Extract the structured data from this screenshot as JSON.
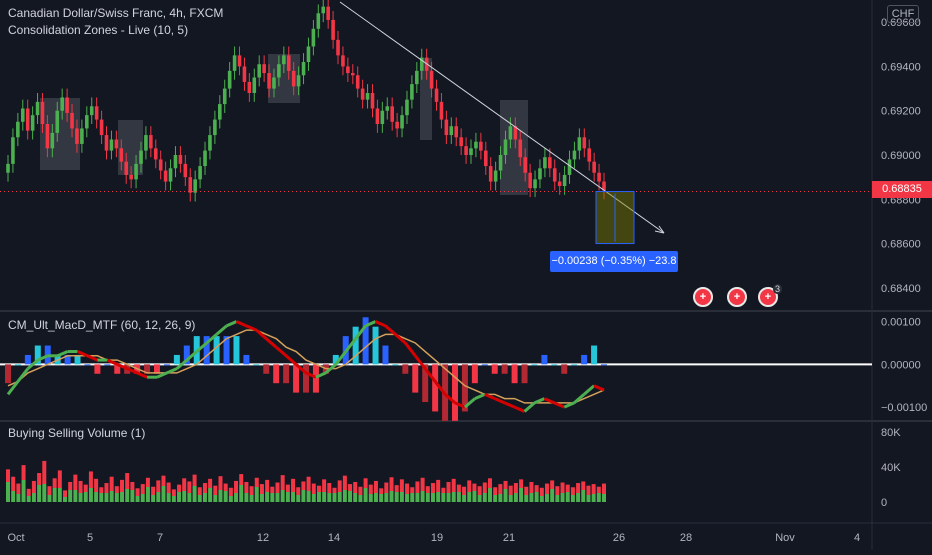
{
  "header": {
    "symbol_title": "Canadian Dollar/Swiss Franc, 4h, FXCM",
    "indicator_1": "Consolidation Zones - Live (10, 5)",
    "indicator_2": "CM_Ult_MacD_MTF (60, 12, 26, 9)",
    "indicator_3": "Buying Selling Volume (1)",
    "currency": "CHF"
  },
  "last_price": "0.68835",
  "measurement_label": "−0.00238 (−0.35%) −23.8",
  "event_badge_count": "3",
  "colors": {
    "background": "#131722",
    "up": "#4caf50",
    "down": "#f23645",
    "accent": "#2962ff",
    "macd_hist_up": "#26c6da",
    "macd_signal": "#d4a15a"
  },
  "chart_data": [
    {
      "type": "candlestick",
      "title": "Canadian Dollar/Swiss Franc, 4h, FXCM",
      "ylim": [
        0.683,
        0.697
      ],
      "y_ticks": [
        "0.69600",
        "0.69400",
        "0.69200",
        "0.69000",
        "0.68800",
        "0.68600",
        "0.68400"
      ],
      "x_ticks": [
        "Oct",
        "5",
        "7",
        "12",
        "14",
        "19",
        "21",
        "26",
        "28",
        "Nov",
        "4"
      ],
      "close": [
        0.6896,
        0.6908,
        0.6915,
        0.6921,
        0.6911,
        0.6918,
        0.6924,
        0.6914,
        0.6903,
        0.691,
        0.692,
        0.6926,
        0.6919,
        0.6912,
        0.6905,
        0.6912,
        0.6918,
        0.6922,
        0.6916,
        0.6909,
        0.6902,
        0.6907,
        0.6903,
        0.6897,
        0.6891,
        0.6889,
        0.6896,
        0.6902,
        0.6909,
        0.6903,
        0.6898,
        0.6893,
        0.6888,
        0.6894,
        0.69,
        0.6896,
        0.689,
        0.6883,
        0.6889,
        0.6895,
        0.6902,
        0.6909,
        0.6916,
        0.6923,
        0.693,
        0.6938,
        0.6945,
        0.694,
        0.6933,
        0.6928,
        0.6935,
        0.6941,
        0.6937,
        0.693,
        0.6935,
        0.6941,
        0.6945,
        0.6938,
        0.6931,
        0.6936,
        0.6942,
        0.6949,
        0.6957,
        0.6964,
        0.6967,
        0.6961,
        0.6952,
        0.6945,
        0.694,
        0.6937,
        0.6936,
        0.693,
        0.6925,
        0.6928,
        0.6921,
        0.6914,
        0.692,
        0.6922,
        0.6915,
        0.6912,
        0.6918,
        0.6925,
        0.6932,
        0.6938,
        0.6944,
        0.6938,
        0.693,
        0.6924,
        0.6916,
        0.6909,
        0.6913,
        0.6908,
        0.6904,
        0.69,
        0.6903,
        0.6906,
        0.6902,
        0.6895,
        0.6888,
        0.6893,
        0.69,
        0.6907,
        0.6913,
        0.6907,
        0.6899,
        0.6892,
        0.6885,
        0.6889,
        0.6894,
        0.6899,
        0.6894,
        0.6888,
        0.6886,
        0.6891,
        0.6898,
        0.6902,
        0.6908,
        0.6903,
        0.6897,
        0.6892,
        0.6888,
        0.6884
      ],
      "open_up_down_alt": "derived",
      "last_price": 0.68835,
      "measure": {
        "text": "−0.00238 (−0.35%) −23.8"
      }
    },
    {
      "type": "line",
      "title": "CM_Ult_MacD_MTF (60, 12, 26, 9)",
      "ylim": [
        -0.0013,
        0.0012
      ],
      "y_ticks": [
        "0.00100",
        "0.00000",
        "−0.00100"
      ],
      "macd": [
        -0.0007,
        -0.0004,
        -0.0001,
        0.0001,
        0.0002,
        0.0002,
        0.0003,
        0.0003,
        0.0002,
        0.0001,
        0.0001,
        0.0,
        -0.0001,
        -0.0002,
        -0.0003,
        -0.0003,
        -0.0002,
        -0.0001,
        0.0001,
        0.0003,
        0.0005,
        0.0007,
        0.0009,
        0.001,
        0.0009,
        0.0008,
        0.0006,
        0.0004,
        0.0002,
        0.0,
        -0.0002,
        -0.0003,
        -0.0002,
        0.0,
        0.0003,
        0.0006,
        0.0009,
        0.001,
        0.0009,
        0.0007,
        0.0005,
        0.0002,
        -0.0001,
        -0.0004,
        -0.0007,
        -0.0009,
        -0.001,
        -0.0008,
        -0.0007,
        -0.0008,
        -0.0009,
        -0.001,
        -0.0011,
        -0.0009,
        -0.0008,
        -0.0009,
        -0.001,
        -0.0009,
        -0.0007,
        -0.0005,
        -0.0006
      ],
      "signal": [
        -0.0005,
        -0.0004,
        -0.0002,
        -0.0001,
        0.0,
        0.0001,
        0.0002,
        0.0002,
        0.0002,
        0.0002,
        0.0001,
        0.0001,
        0.0,
        -0.0001,
        -0.0002,
        -0.0002,
        -0.0002,
        -0.0002,
        -0.0001,
        0.0,
        0.0002,
        0.0004,
        0.0006,
        0.0007,
        0.0008,
        0.0008,
        0.0007,
        0.0006,
        0.0004,
        0.0003,
        0.0001,
        0.0,
        -0.0001,
        -0.0001,
        0.0,
        0.0002,
        0.0004,
        0.0006,
        0.0007,
        0.0007,
        0.0006,
        0.0005,
        0.0003,
        0.0001,
        -0.0001,
        -0.0003,
        -0.0005,
        -0.0006,
        -0.0007,
        -0.0007,
        -0.0008,
        -0.0008,
        -0.0009,
        -0.0009,
        -0.0009,
        -0.0009,
        -0.0009,
        -0.0009,
        -0.0008,
        -0.0007,
        -0.0006
      ]
    },
    {
      "type": "bar",
      "title": "Buying Selling Volume (1)",
      "ylim": [
        0,
        90000
      ],
      "y_ticks": [
        "80K",
        "40K",
        "0"
      ],
      "volume": [
        62,
        48,
        35,
        70,
        25,
        40,
        55,
        78,
        30,
        45,
        60,
        22,
        38,
        52,
        40,
        33,
        58,
        44,
        28,
        36,
        48,
        30,
        42,
        55,
        38,
        26,
        34,
        46,
        29,
        41,
        50,
        37,
        24,
        33,
        45,
        39,
        52,
        28,
        36,
        44,
        31,
        49,
        35,
        27,
        40,
        53,
        38,
        30,
        46,
        34,
        42,
        29,
        37,
        51,
        33,
        44,
        28,
        39,
        48,
        35,
        31,
        43,
        36,
        27,
        41,
        50,
        34,
        38,
        29,
        45,
        33,
        40,
        26,
        37,
        47,
        32,
        43,
        35,
        28,
        39,
        46,
        30,
        36,
        42,
        27,
        38,
        44,
        33,
        29,
        41,
        35,
        30,
        37,
        45,
        28,
        34,
        40,
        31,
        36,
        43,
        29,
        38,
        32,
        27,
        35,
        41,
        30,
        37,
        33,
        28,
        36,
        39,
        31,
        34,
        29,
        35
      ]
    }
  ]
}
